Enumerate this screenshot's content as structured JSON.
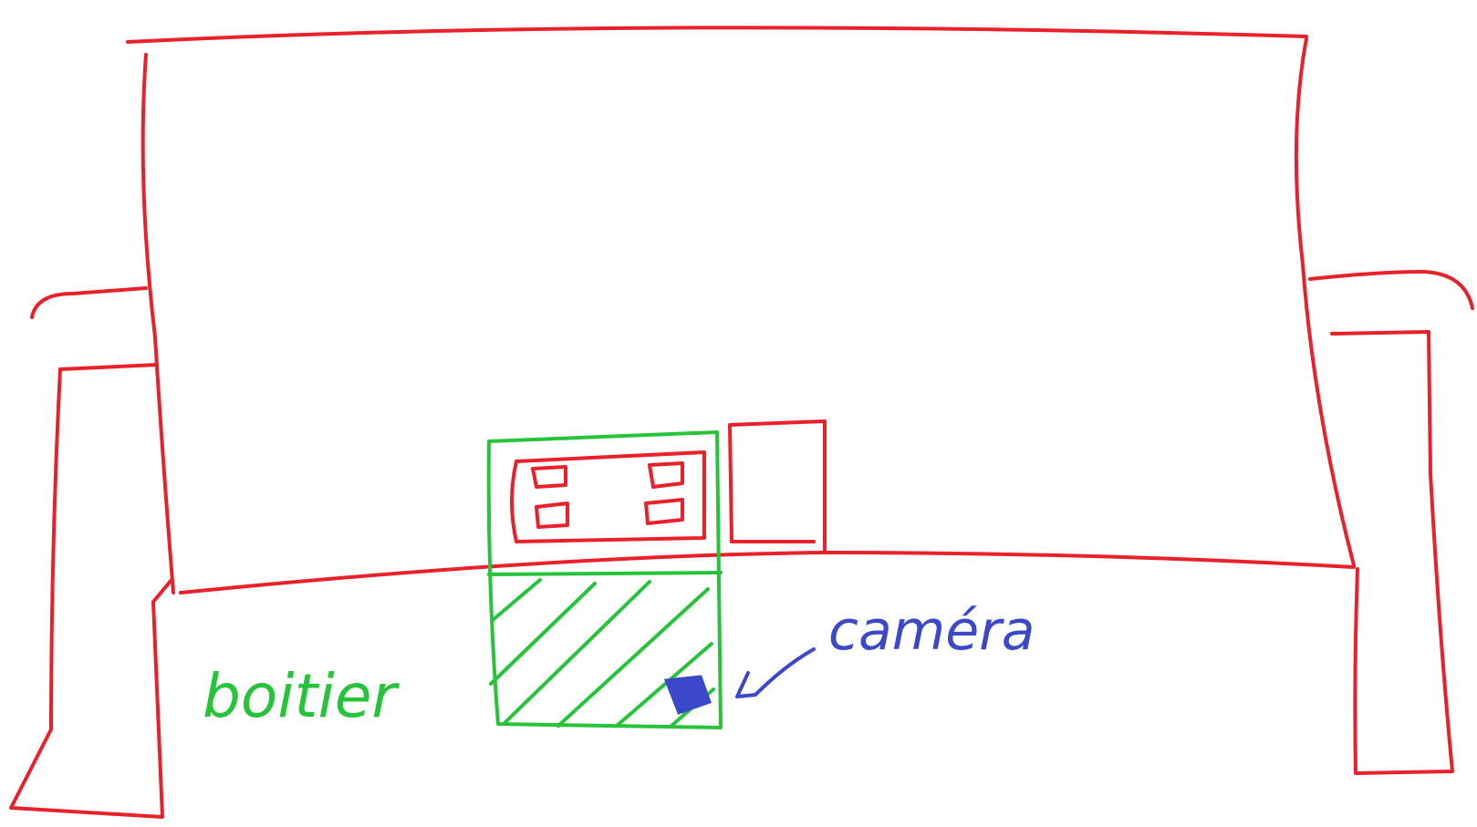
{
  "labels": {
    "boitier": "boitier",
    "camera": "caméra"
  },
  "colors": {
    "furniture": "#e8212a",
    "boitier": "#27c43b",
    "camera": "#3b48c9",
    "background": "#ffffff"
  }
}
